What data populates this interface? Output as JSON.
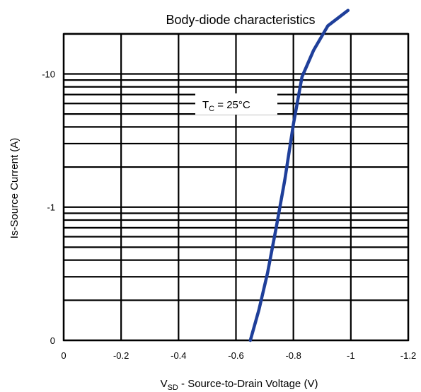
{
  "chart_data": {
    "type": "line",
    "title": "Body-diode characteristics",
    "xlabel": {
      "main": "V",
      "sub": "SD",
      "rest": " - Source-to-Drain Voltage (V)"
    },
    "ylabel": "Is-Source Current (A)",
    "x_ticks": [
      "0",
      "-0.2",
      "-0.4",
      "-0.6",
      "-0.8",
      "-1",
      "-1.2"
    ],
    "y_ticks": [
      "0",
      "-1",
      "-10"
    ],
    "xlim": [
      0,
      -1.2
    ],
    "y_scale": "log",
    "y_decades": [
      "0.1",
      "1",
      "10"
    ],
    "grid": true,
    "annotation": {
      "main": "T",
      "sub": "C",
      "rest": " = 25°C"
    },
    "series": [
      {
        "color": "#1f3f9a",
        "x": [
          -0.65,
          -0.68,
          -0.71,
          -0.74,
          -0.77,
          -0.8,
          -0.83,
          -0.87,
          -0.92,
          -0.99
        ],
        "y": [
          -0.1,
          -0.17,
          -0.32,
          -0.7,
          -1.6,
          -4.2,
          -9.5,
          -15,
          -23,
          -30
        ]
      }
    ]
  }
}
